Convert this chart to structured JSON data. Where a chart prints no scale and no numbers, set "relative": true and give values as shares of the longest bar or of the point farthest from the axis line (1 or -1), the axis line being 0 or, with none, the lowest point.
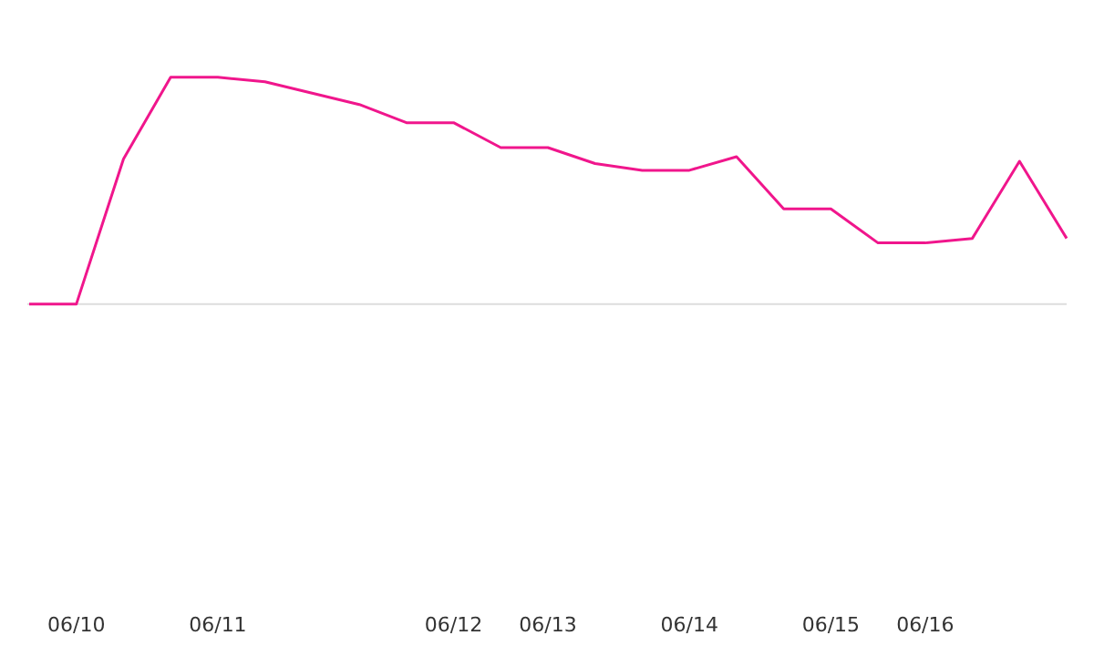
{
  "chart_data": {
    "type": "line",
    "relative": true,
    "categories": [
      null,
      "06/10",
      null,
      null,
      "06/11",
      null,
      null,
      null,
      null,
      "06/12",
      null,
      "06/13",
      null,
      null,
      "06/14",
      null,
      null,
      "06/15",
      null,
      "06/16",
      null,
      null,
      null
    ],
    "series": [
      {
        "color": "#f0168c",
        "values": [
          0,
          0,
          0.64,
          1,
          1,
          0.98,
          0.93,
          0.88,
          0.8,
          0.8,
          0.69,
          0.69,
          0.62,
          0.59,
          0.59,
          0.65,
          0.42,
          0.42,
          0.27,
          0.27,
          0.29,
          0.63,
          0.29
        ]
      }
    ],
    "grid": false,
    "legend": false,
    "marker": "none",
    "line_style": "solid"
  }
}
